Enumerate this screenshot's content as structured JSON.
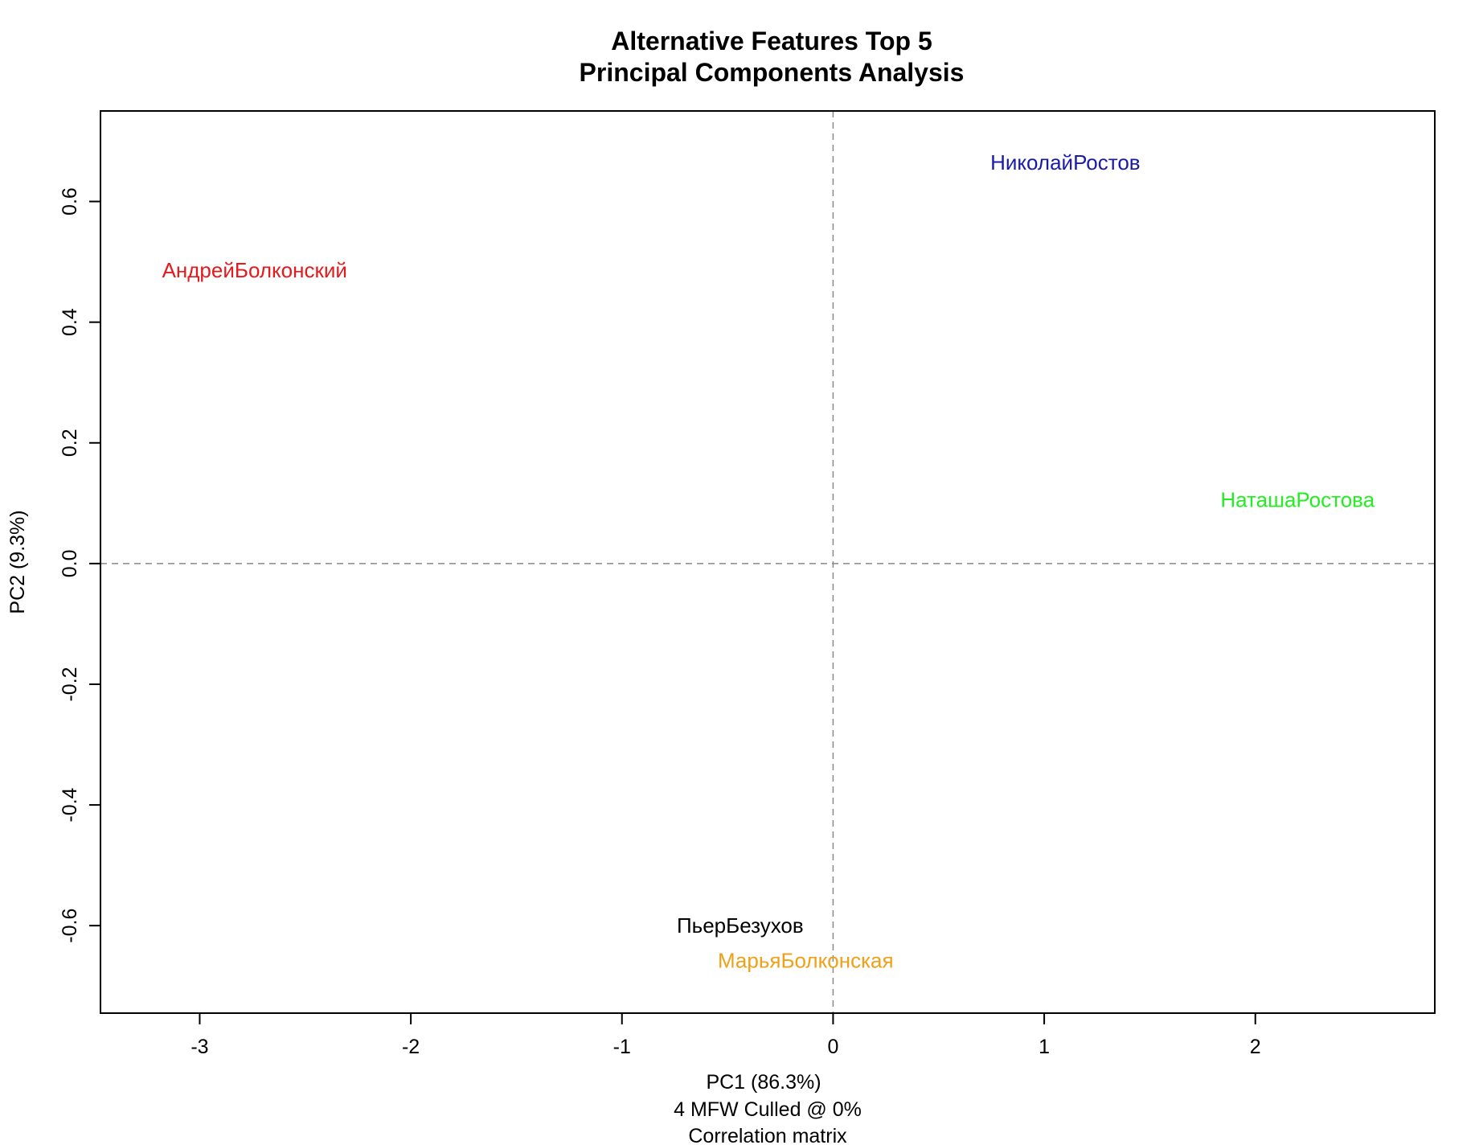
{
  "chart_data": {
    "type": "scatter",
    "title": "Alternative Features Top 5",
    "subtitle": "Principal Components Analysis",
    "xlabel": "PC1 (86.3%)",
    "xlabel_line2": "4 MFW  Culled @ 0%",
    "xlabel_line3": "Correlation matrix",
    "ylabel": "PC2 (9.3%)",
    "xlim": [
      -3.47,
      2.85
    ],
    "ylim": [
      -0.745,
      0.75
    ],
    "x_ticks": [
      -3,
      -2,
      -1,
      0,
      1,
      2
    ],
    "x_tick_labels": [
      "-3",
      "-2",
      "-1",
      "0",
      "1",
      "2"
    ],
    "y_ticks": [
      -0.6,
      -0.4,
      -0.2,
      0.0,
      0.2,
      0.4,
      0.6
    ],
    "y_tick_labels": [
      "-0.6",
      "-0.4",
      "-0.2",
      "0.0",
      "0.2",
      "0.4",
      "0.6"
    ],
    "reference_lines": {
      "x": 0,
      "y": 0,
      "style": "dashed",
      "color": "#888888"
    },
    "grid": false,
    "points": [
      {
        "label": "НиколайРостов",
        "x": 1.1,
        "y": 0.665,
        "color": "#1a1aaa"
      },
      {
        "label": "АндрейБолконский",
        "x": -2.74,
        "y": 0.486,
        "color": "#e41a1c"
      },
      {
        "label": "НаташаРостова",
        "x": 2.2,
        "y": 0.106,
        "color": "#22ee22"
      },
      {
        "label": "ПьерБезухов",
        "x": -0.44,
        "y": -0.6,
        "color": "#000000"
      },
      {
        "label": "МарьяБолконская",
        "x": -0.13,
        "y": -0.658,
        "color": "#f0a018"
      }
    ]
  }
}
